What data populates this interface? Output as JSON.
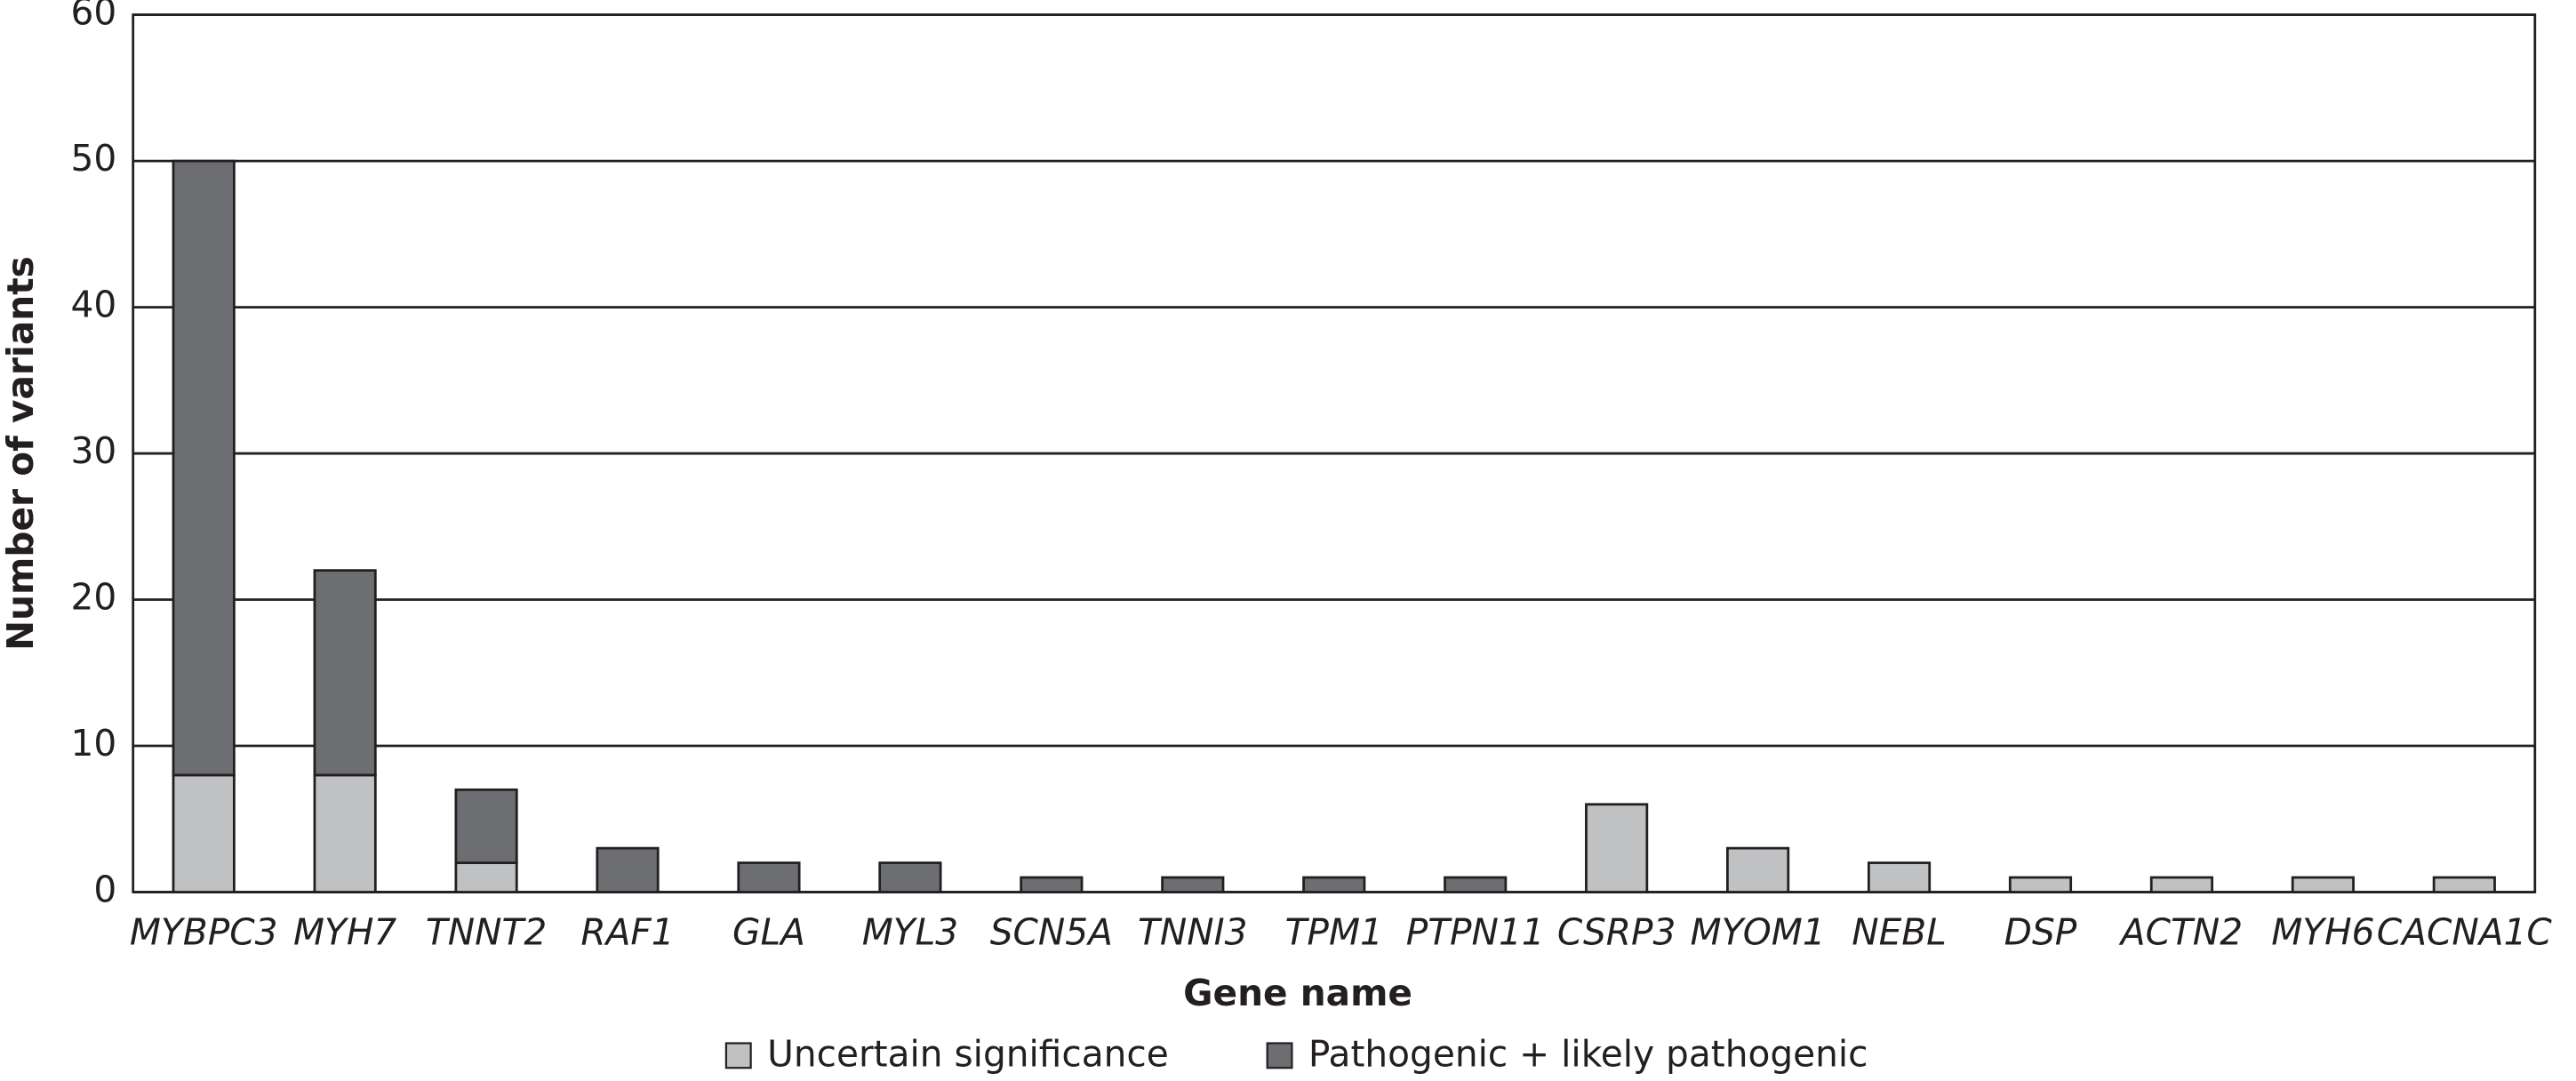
{
  "chart_data": {
    "type": "stacked_bar",
    "x_label": "Gene name",
    "y_label": "Number of variants",
    "categories": [
      "MYBPC3",
      "MYH7",
      "TNNT2",
      "RAF1",
      "GLA",
      "MYL3",
      "SCN5A",
      "TNNI3",
      "TPM1",
      "PTPN11",
      "CSRP3",
      "MYOM1",
      "NEBL",
      "DSP",
      "ACTN2",
      "MYH6",
      "CACNA1C"
    ],
    "series": [
      {
        "name": "Uncertain significance",
        "color": "#c0c1c3",
        "values": [
          8,
          8,
          2,
          0,
          0,
          0,
          0,
          0,
          0,
          0,
          6,
          3,
          2,
          1,
          1,
          1,
          1
        ]
      },
      {
        "name": "Pathogenic + likely pathogenic",
        "color": "#6d6e71",
        "values": [
          42,
          14,
          5,
          3,
          2,
          2,
          1,
          1,
          1,
          1,
          0,
          0,
          0,
          0,
          0,
          0,
          0
        ]
      }
    ],
    "ylim": [
      0,
      60
    ],
    "yticks": [
      0,
      10,
      20,
      30,
      40,
      50,
      60
    ],
    "grid": true,
    "legend": "bottom"
  }
}
